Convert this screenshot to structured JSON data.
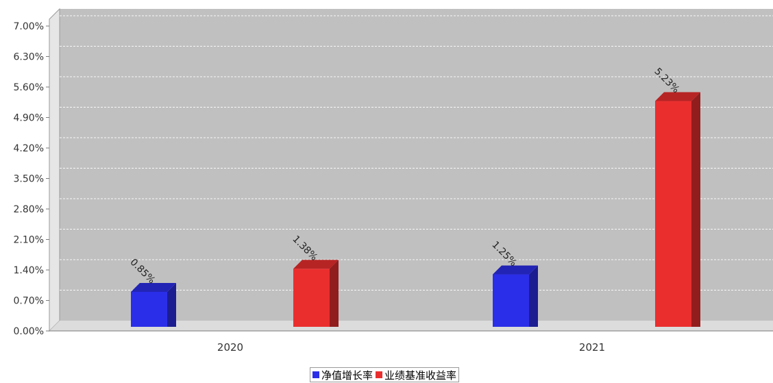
{
  "chart_data": {
    "type": "bar",
    "categories": [
      "2020",
      "2021"
    ],
    "series": [
      {
        "name": "净值增长率",
        "color": "#2b2ee8",
        "values": [
          0.85,
          1.25
        ],
        "labels": [
          "0.85%",
          "1.25%"
        ]
      },
      {
        "name": "业绩基准收益率",
        "color": "#ea2e2e",
        "values": [
          1.38,
          5.23
        ],
        "labels": [
          "1.38%",
          "5.23%"
        ]
      }
    ],
    "y_ticks": [
      "0.00%",
      "0.70%",
      "1.40%",
      "2.10%",
      "2.80%",
      "3.50%",
      "4.20%",
      "4.90%",
      "5.60%",
      "6.30%",
      "7.00%"
    ],
    "ylim": [
      0,
      7.0
    ],
    "grid": true,
    "legend_position": "bottom-center",
    "style": "3d-bar"
  }
}
